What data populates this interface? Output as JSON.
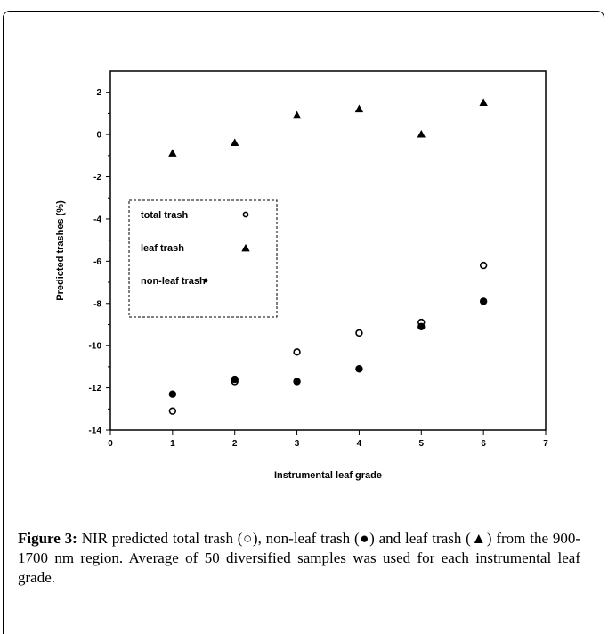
{
  "chart_data": {
    "type": "scatter",
    "xlabel": "Instrumental leaf grade",
    "ylabel": "Predicted trashes (%)",
    "xlim": [
      0,
      7
    ],
    "ylim": [
      -14,
      3
    ],
    "x_ticks": [
      0,
      1,
      2,
      3,
      4,
      5,
      6,
      7
    ],
    "y_ticks": [
      2,
      0,
      -2,
      -4,
      -6,
      -8,
      -10,
      -12,
      -14
    ],
    "grid": false,
    "legend_position": "middle-left",
    "series": [
      {
        "name": "total trash",
        "marker": "open-circle",
        "color": "#000000",
        "points": [
          [
            1,
            -13.1
          ],
          [
            2,
            -11.7
          ],
          [
            3,
            -10.3
          ],
          [
            4,
            -9.4
          ],
          [
            5,
            -8.9
          ],
          [
            6,
            -6.2
          ]
        ]
      },
      {
        "name": "leaf trash",
        "marker": "triangle",
        "color": "#000000",
        "points": [
          [
            1,
            -0.9
          ],
          [
            2,
            -0.4
          ],
          [
            3,
            0.9
          ],
          [
            4,
            1.2
          ],
          [
            5,
            0.0
          ],
          [
            6,
            1.5
          ]
        ]
      },
      {
        "name": "non-leaf trash",
        "marker": "filled-circle",
        "color": "#000000",
        "points": [
          [
            1,
            -12.3
          ],
          [
            2,
            -11.6
          ],
          [
            3,
            -11.7
          ],
          [
            4,
            -11.1
          ],
          [
            5,
            -9.1
          ],
          [
            6,
            -7.9
          ]
        ]
      }
    ]
  },
  "caption": {
    "label": "Figure 3:",
    "text": "NIR predicted total trash (○), non-leaf trash (●) and leaf trash (▲) from the 900-1700 nm region. Average of 50 diversified samples was used for each instrumental leaf grade."
  }
}
